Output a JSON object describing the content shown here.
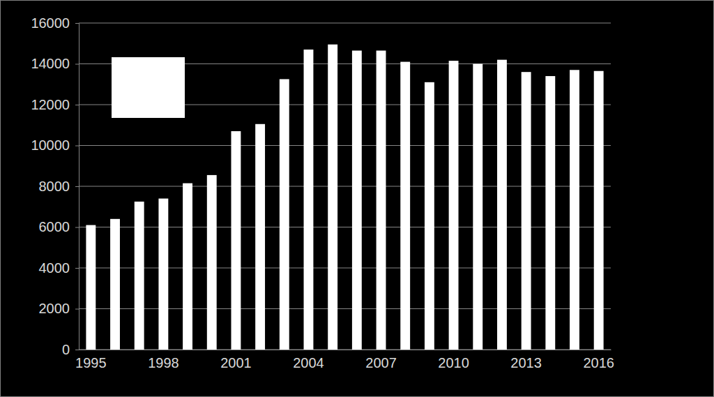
{
  "chart_data": {
    "type": "bar",
    "categories": [
      1995,
      null,
      null,
      1998,
      null,
      null,
      2001,
      null,
      null,
      2004,
      null,
      null,
      2007,
      null,
      null,
      2010,
      null,
      null,
      2013,
      null,
      null,
      2016
    ],
    "values": [
      6100,
      6400,
      7250,
      7400,
      8150,
      8550,
      10700,
      11050,
      13250,
      14700,
      14950,
      14650,
      14650,
      14100,
      13100,
      14150,
      14000,
      14200,
      13600,
      13400,
      13700,
      13650
    ],
    "color": "#ffffff",
    "ylim": [
      0,
      16000
    ],
    "yticks": [
      0,
      2000,
      4000,
      6000,
      8000,
      10000,
      12000,
      14000,
      16000
    ],
    "grid": true
  }
}
